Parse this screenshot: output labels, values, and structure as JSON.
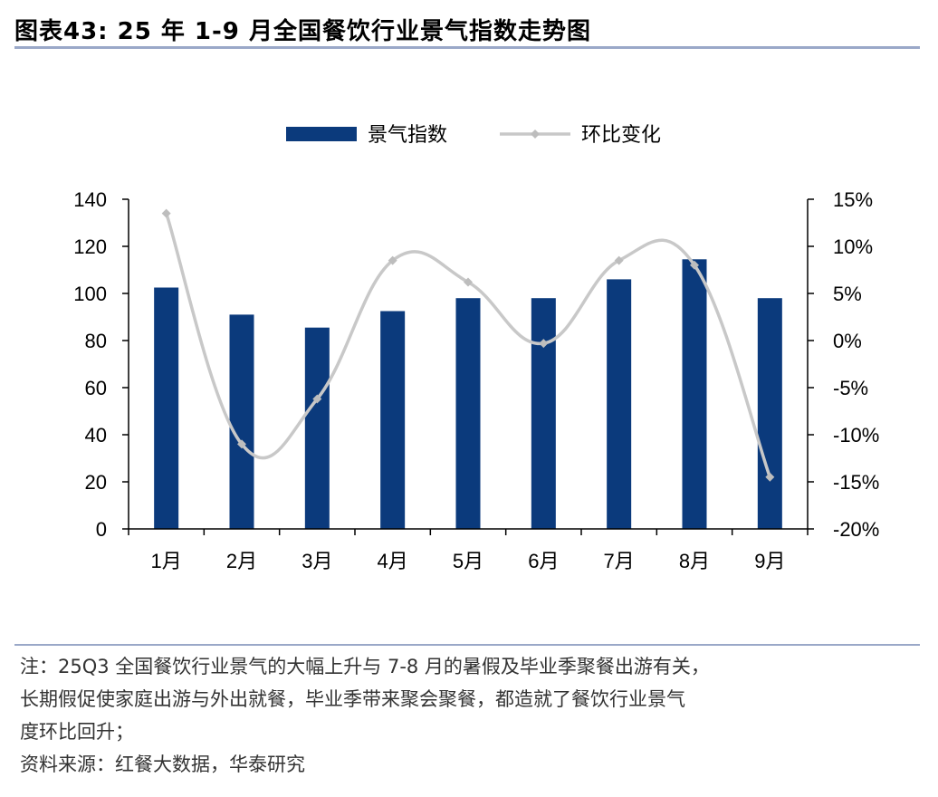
{
  "header": {
    "title": "图表43:  25 年 1-9 月全国餐饮行业景气指数走势图"
  },
  "chart_data": {
    "type": "bar",
    "categories": [
      "1月",
      "2月",
      "3月",
      "4月",
      "5月",
      "6月",
      "7月",
      "8月",
      "9月"
    ],
    "series": [
      {
        "name": "景气指数",
        "type": "bar",
        "axis": "left",
        "color": "#0b3a7c",
        "values": [
          102.5,
          91,
          85.5,
          92.5,
          98,
          98,
          106,
          114.5,
          98
        ]
      },
      {
        "name": "环比变化",
        "type": "line",
        "axis": "right",
        "color": "#c8c8c8",
        "values": [
          13.5,
          -11,
          -6.2,
          8.5,
          6.2,
          -0.3,
          8.5,
          8,
          -14.5
        ]
      }
    ],
    "y_left": {
      "min": 0,
      "max": 140,
      "step": 20,
      "ticks": [
        "0",
        "20",
        "40",
        "60",
        "80",
        "100",
        "120",
        "140"
      ]
    },
    "y_right": {
      "min": -20,
      "max": 15,
      "step": 5,
      "ticks": [
        "-20%",
        "-15%",
        "-10%",
        "-5%",
        "0%",
        "5%",
        "10%",
        "15%"
      ]
    },
    "legend_position": "top-center",
    "grid": false
  },
  "notes": {
    "line1": "注：25Q3 全国餐饮行业景气的大幅上升与 7-8 月的暑假及毕业季聚餐出游有关，",
    "line2": "长期假促使家庭出游与外出就餐，毕业季带来聚会聚餐，都造就了餐饮行业景气",
    "line3": "度环比回升；",
    "source": "资料来源：红餐大数据，华泰研究"
  }
}
